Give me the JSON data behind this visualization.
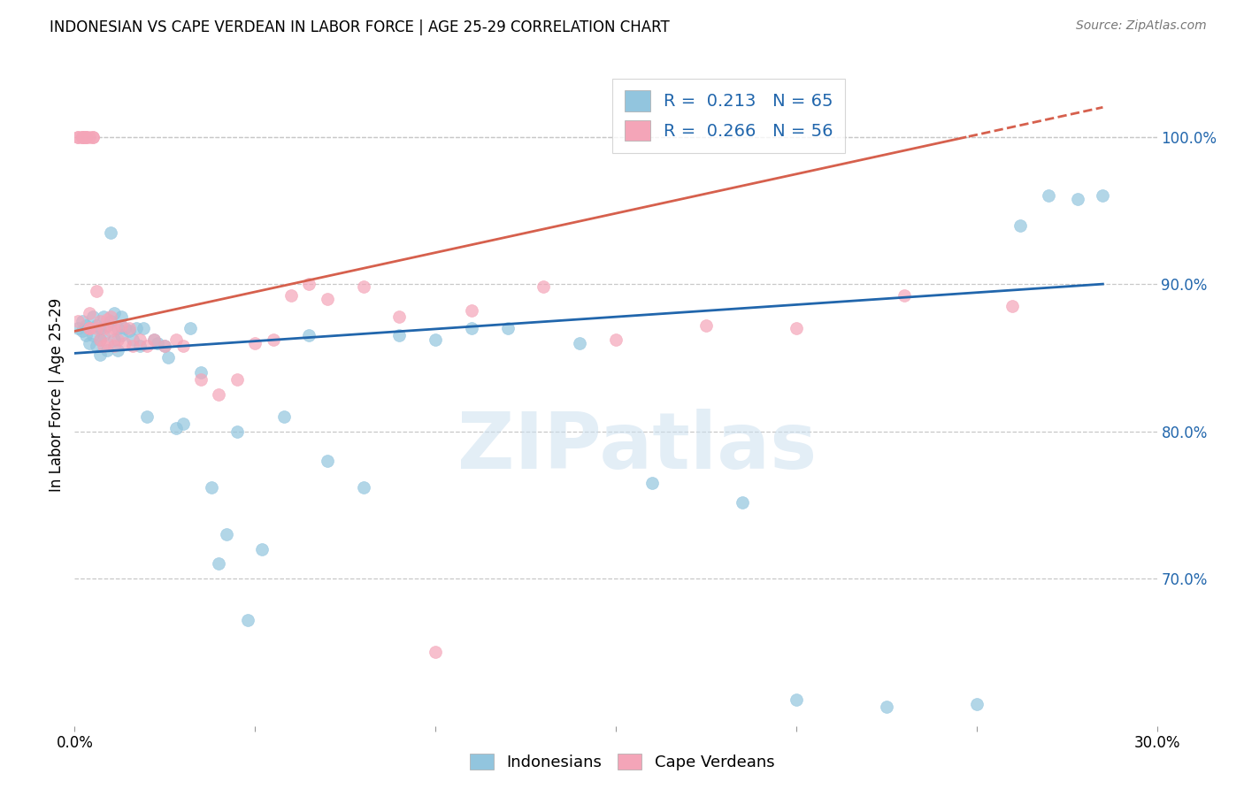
{
  "title": "INDONESIAN VS CAPE VERDEAN IN LABOR FORCE | AGE 25-29 CORRELATION CHART",
  "source": "Source: ZipAtlas.com",
  "ylabel_label": "In Labor Force | Age 25-29",
  "xlim": [
    0.0,
    0.3
  ],
  "ylim": [
    0.6,
    1.05
  ],
  "xticks": [
    0.0,
    0.05,
    0.1,
    0.15,
    0.2,
    0.25,
    0.3
  ],
  "xtick_labels": [
    "0.0%",
    "",
    "",
    "",
    "",
    "",
    "30.0%"
  ],
  "ytick_vals_right": [
    0.7,
    0.8,
    0.9,
    1.0
  ],
  "ytick_labels_right": [
    "70.0%",
    "80.0%",
    "90.0%",
    "100.0%"
  ],
  "legend_R_blue": "0.213",
  "legend_N_blue": "65",
  "legend_R_pink": "0.266",
  "legend_N_pink": "56",
  "blue_color": "#92c5de",
  "pink_color": "#f4a5b8",
  "blue_line_color": "#2166ac",
  "pink_line_color": "#d6604d",
  "legend_text_color": "#2166ac",
  "watermark": "ZIPatlas",
  "blue_trend_x0": 0.0,
  "blue_trend_y0": 0.853,
  "blue_trend_x1": 0.285,
  "blue_trend_y1": 0.9,
  "pink_trend_x0": 0.0,
  "pink_trend_y0": 0.868,
  "pink_trend_x1": 0.285,
  "pink_trend_y1": 1.02,
  "pink_dashed_threshold": 1.0,
  "blue_scatter_x": [
    0.001,
    0.002,
    0.002,
    0.003,
    0.003,
    0.004,
    0.004,
    0.005,
    0.005,
    0.006,
    0.006,
    0.007,
    0.007,
    0.007,
    0.008,
    0.008,
    0.009,
    0.009,
    0.01,
    0.01,
    0.011,
    0.011,
    0.012,
    0.012,
    0.013,
    0.013,
    0.014,
    0.015,
    0.016,
    0.017,
    0.018,
    0.019,
    0.02,
    0.022,
    0.023,
    0.025,
    0.026,
    0.028,
    0.03,
    0.032,
    0.035,
    0.038,
    0.04,
    0.042,
    0.045,
    0.048,
    0.052,
    0.058,
    0.065,
    0.07,
    0.08,
    0.09,
    0.1,
    0.11,
    0.12,
    0.14,
    0.16,
    0.185,
    0.2,
    0.225,
    0.25,
    0.262,
    0.27,
    0.278,
    0.285
  ],
  "blue_scatter_y": [
    0.87,
    0.875,
    0.868,
    0.872,
    0.865,
    0.87,
    0.86,
    0.878,
    0.865,
    0.872,
    0.858,
    0.87,
    0.862,
    0.852,
    0.878,
    0.865,
    0.872,
    0.855,
    0.935,
    0.875,
    0.88,
    0.862,
    0.87,
    0.855,
    0.878,
    0.865,
    0.87,
    0.868,
    0.862,
    0.87,
    0.858,
    0.87,
    0.81,
    0.862,
    0.86,
    0.858,
    0.85,
    0.802,
    0.805,
    0.87,
    0.84,
    0.762,
    0.71,
    0.73,
    0.8,
    0.672,
    0.72,
    0.81,
    0.865,
    0.78,
    0.762,
    0.865,
    0.862,
    0.87,
    0.87,
    0.86,
    0.765,
    0.752,
    0.618,
    0.613,
    0.615,
    0.94,
    0.96,
    0.958,
    0.96
  ],
  "pink_scatter_x": [
    0.001,
    0.001,
    0.001,
    0.002,
    0.002,
    0.002,
    0.003,
    0.003,
    0.003,
    0.004,
    0.004,
    0.004,
    0.004,
    0.005,
    0.005,
    0.006,
    0.006,
    0.007,
    0.007,
    0.008,
    0.008,
    0.009,
    0.009,
    0.01,
    0.01,
    0.011,
    0.011,
    0.012,
    0.013,
    0.014,
    0.015,
    0.016,
    0.018,
    0.02,
    0.022,
    0.025,
    0.028,
    0.03,
    0.035,
    0.04,
    0.045,
    0.05,
    0.055,
    0.06,
    0.065,
    0.07,
    0.08,
    0.09,
    0.1,
    0.11,
    0.13,
    0.15,
    0.175,
    0.2,
    0.23,
    0.26
  ],
  "pink_scatter_y": [
    1.0,
    1.0,
    0.875,
    1.0,
    1.0,
    1.0,
    1.0,
    1.0,
    1.0,
    1.0,
    0.87,
    0.88,
    0.87,
    1.0,
    1.0,
    0.895,
    0.87,
    0.875,
    0.862,
    0.87,
    0.858,
    0.876,
    0.86,
    0.878,
    0.868,
    0.87,
    0.858,
    0.862,
    0.872,
    0.86,
    0.87,
    0.858,
    0.862,
    0.858,
    0.862,
    0.858,
    0.862,
    0.858,
    0.835,
    0.825,
    0.835,
    0.86,
    0.862,
    0.892,
    0.9,
    0.89,
    0.898,
    0.878,
    0.65,
    0.882,
    0.898,
    0.862,
    0.872,
    0.87,
    0.892,
    0.885
  ]
}
